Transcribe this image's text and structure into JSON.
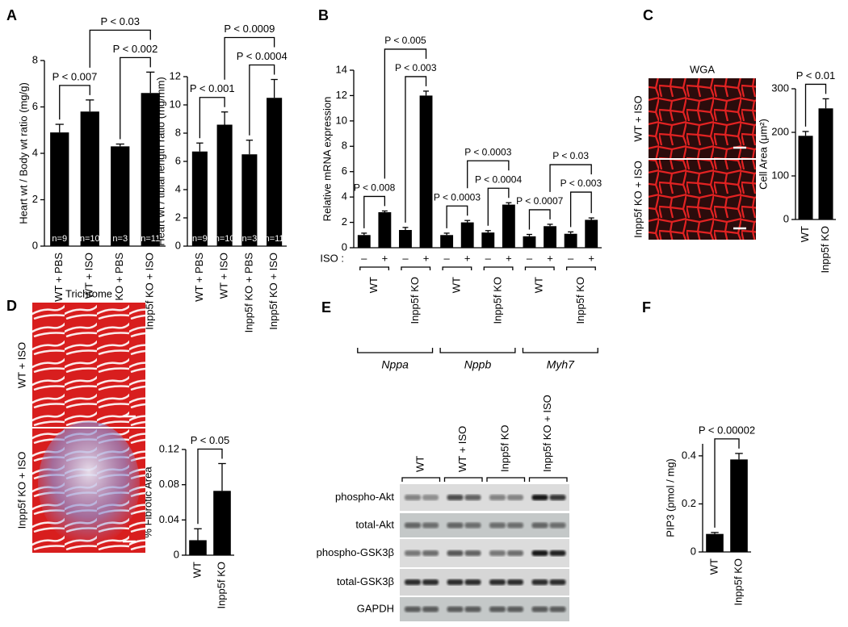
{
  "panel_labels": [
    "A",
    "B",
    "C",
    "D",
    "E",
    "F"
  ],
  "chart_data": [
    {
      "type": "bar",
      "ylabel": "Heart wt / Body wt ratio (mg/g)",
      "color": "#000000",
      "categories": [
        "WT + PBS",
        "WT + ISO",
        "Inpp5f KO + PBS",
        "Inpp5f KO + ISO"
      ],
      "values": [
        4.9,
        5.8,
        4.3,
        6.6
      ],
      "errors": [
        0.35,
        0.5,
        0.1,
        0.9
      ],
      "n_labels": [
        "n=9",
        "n=10",
        "n=3",
        "n=11"
      ],
      "ylim": [
        0,
        8
      ],
      "yticks": [
        0,
        2,
        4,
        6,
        8
      ],
      "annotations": [
        {
          "text": "P < 0.007",
          "between": [
            0,
            1
          ]
        },
        {
          "text": "P < 0.002",
          "between": [
            2,
            3
          ]
        },
        {
          "text": "P < 0.03",
          "between": [
            1,
            3
          ]
        }
      ]
    },
    {
      "type": "bar",
      "ylabel": "Heart wt / tibial length ratio (mg/mm)",
      "color": "#000000",
      "categories": [
        "WT + PBS",
        "WT + ISO",
        "Inpp5f KO + PBS",
        "Inpp5f KO + ISO"
      ],
      "values": [
        6.7,
        8.6,
        6.5,
        10.5
      ],
      "errors": [
        0.6,
        0.9,
        1.0,
        1.3
      ],
      "n_labels": [
        "n=9",
        "n=10",
        "n=3",
        "n=11"
      ],
      "ylim": [
        0,
        12
      ],
      "yticks": [
        0,
        2,
        4,
        6,
        8,
        10,
        12
      ],
      "annotations": [
        {
          "text": "P < 0.001",
          "between": [
            0,
            1
          ]
        },
        {
          "text": "P < 0.0004",
          "between": [
            2,
            3
          ]
        },
        {
          "text": "P < 0.0009",
          "between": [
            1,
            3
          ]
        }
      ]
    },
    {
      "type": "bar",
      "ylabel": "Relative mRNA expression",
      "color": "#000000",
      "iso_label": "ISO :",
      "categories": [
        "–",
        "+",
        "–",
        "+",
        "–",
        "+",
        "–",
        "+",
        "–",
        "+",
        "–",
        "+"
      ],
      "values": [
        1.0,
        2.8,
        1.4,
        12.0,
        1.0,
        2.0,
        1.2,
        3.4,
        0.9,
        1.7,
        1.1,
        2.2
      ],
      "errors": [
        0.15,
        0.1,
        0.2,
        0.35,
        0.15,
        0.15,
        0.15,
        0.15,
        0.15,
        0.15,
        0.15,
        0.15
      ],
      "groups": [
        "WT",
        "Inpp5f KO",
        "WT",
        "Inpp5f KO",
        "WT",
        "Inpp5f KO"
      ],
      "genes": [
        "Nppa",
        "Nppb",
        "Myh7"
      ],
      "ylim": [
        0,
        14
      ],
      "yticks": [
        0,
        2,
        4,
        6,
        8,
        10,
        12,
        14
      ],
      "annotations": [
        {
          "text": "P < 0.008",
          "between": [
            0,
            1
          ]
        },
        {
          "text": "P < 0.003",
          "between": [
            2,
            3
          ]
        },
        {
          "text": "P < 0.005",
          "between": [
            1,
            3
          ]
        },
        {
          "text": "P < 0.0003",
          "between": [
            4,
            5
          ]
        },
        {
          "text": "P < 0.0004",
          "between": [
            6,
            7
          ]
        },
        {
          "text": "P < 0.0003",
          "between": [
            5,
            7
          ]
        },
        {
          "text": "P < 0.0007",
          "between": [
            8,
            9
          ]
        },
        {
          "text": "P < 0.003",
          "between": [
            10,
            11
          ]
        },
        {
          "text": "P < 0.03",
          "between": [
            9,
            11
          ]
        }
      ]
    },
    {
      "type": "bar",
      "ylabel": "Cell Area (μm²)",
      "color": "#000000",
      "categories": [
        "WT",
        "Inpp5f KO"
      ],
      "values": [
        192,
        255
      ],
      "errors": [
        10,
        22
      ],
      "ylim": [
        0,
        300
      ],
      "yticks": [
        0,
        100,
        200,
        300
      ],
      "annotations": [
        {
          "text": "P < 0.01",
          "between": [
            0,
            1
          ]
        }
      ]
    },
    {
      "type": "bar",
      "ylabel": "% Fibrotic Area",
      "color": "#000000",
      "categories": [
        "WT",
        "Inpp5f KO"
      ],
      "values": [
        0.017,
        0.073
      ],
      "errors": [
        0.013,
        0.031
      ],
      "ylim": [
        0,
        0.12
      ],
      "yticks": [
        0,
        0.04,
        0.08,
        0.12
      ],
      "annotations": [
        {
          "text": "P < 0.05",
          "between": [
            0,
            1
          ]
        }
      ]
    },
    {
      "type": "bar",
      "ylabel": "PIP3 (pmol / mg)",
      "color": "#000000",
      "categories": [
        "WT",
        "Inpp5f KO"
      ],
      "values": [
        0.075,
        0.385
      ],
      "errors": [
        0.006,
        0.025
      ],
      "ylim": [
        0,
        0.45
      ],
      "yticks": [
        0,
        0.2,
        0.4
      ],
      "annotations": [
        {
          "text": "P < 0.00002",
          "between": [
            0,
            1
          ]
        }
      ]
    }
  ],
  "micrographs": [
    {
      "title": "WGA",
      "rows": [
        "WT + ISO",
        "Inpp5f KO + ISO"
      ]
    },
    {
      "title": "Trichrome",
      "rows": [
        "WT + ISO",
        "Inpp5f KO + ISO"
      ]
    }
  ],
  "blot": {
    "lanes": [
      "WT",
      "WT + ISO",
      "Inpp5f KO",
      "Inpp5f KO + ISO"
    ],
    "rows": [
      "phospho-Akt",
      "total-Akt",
      "phospho-GSK3β",
      "total-GSK3β",
      "GAPDH"
    ]
  }
}
